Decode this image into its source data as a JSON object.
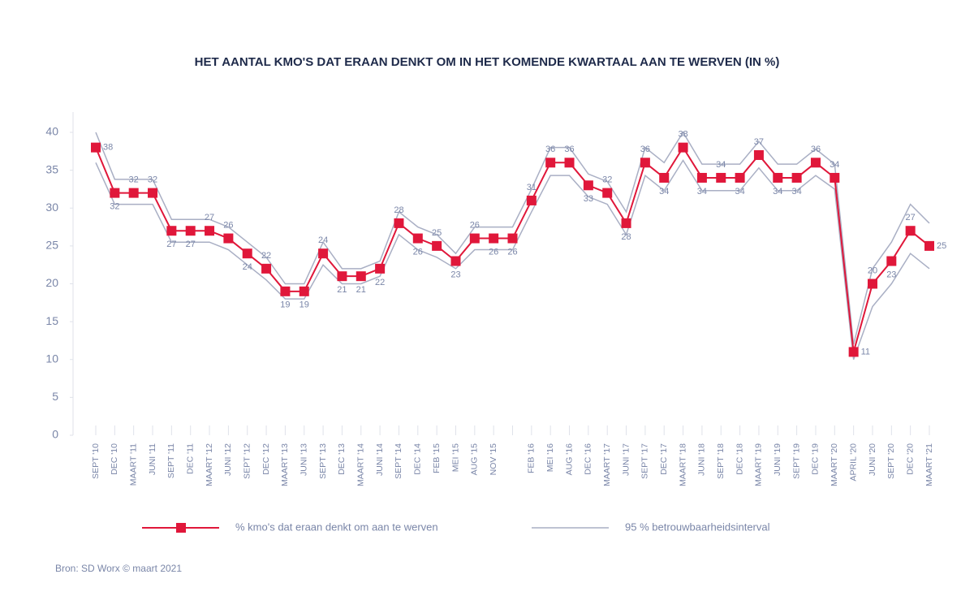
{
  "chart_data": {
    "type": "line",
    "title": "HET AANTAL KMO'S DAT ERAAN DENKT OM IN HET KOMENDE KWARTAAL AAN TE WERVEN (IN %)",
    "categories": [
      "SEPT '10",
      "DEC '10",
      "MAART '11",
      "JUNI '11",
      "SEPT '11",
      "DEC '11",
      "MAART '12",
      "JUNI '12",
      "SEPT '12",
      "DEC '12",
      "MAART '13",
      "JUNI '13",
      "SEPT '13",
      "DEC '13",
      "MAART '14",
      "JUNI '14",
      "SEPT '14",
      "DEC '14",
      "FEB '15",
      "MEI '15",
      "AUG '15",
      "NOV '15",
      null,
      "FEB '16",
      "MEI '16",
      "AUG '16",
      "DEC '16",
      "MAART '17",
      "JUNI '17",
      "SEPT '17",
      "DEC '17",
      "MAART '18",
      "JUNI '18",
      "SEPT '18",
      "DEC '18",
      "MAART '19",
      "JUNI '19",
      "SEPT '19",
      "DEC '19",
      "MAART '20",
      "APRIL '20",
      "JUNI '20",
      "SEPT '20",
      "DEC '20",
      "MAART '21"
    ],
    "series": [
      {
        "name": "% kmo's dat eraan denkt om aan te werven",
        "color": "#e0173a",
        "values": [
          38,
          32,
          32,
          32,
          27,
          27,
          27,
          26,
          24,
          22,
          19,
          19,
          24,
          21,
          21,
          22,
          28,
          26,
          25,
          23,
          26,
          26,
          26,
          31,
          36,
          36,
          33,
          32,
          28,
          36,
          34,
          38,
          34,
          34,
          34,
          37,
          34,
          34,
          36,
          34,
          11,
          20,
          23,
          27,
          25
        ]
      },
      {
        "name": "95 % betrouwbaarheidsinterval",
        "color": "#a9afc4",
        "upper": [
          40,
          33.8,
          33.8,
          33.8,
          28.5,
          28.5,
          28.5,
          27.5,
          25.5,
          23.5,
          20,
          20,
          25.5,
          22,
          22,
          23,
          29.5,
          27.5,
          26.5,
          24,
          27.5,
          27.5,
          27.5,
          32.5,
          38,
          38,
          34.5,
          33.5,
          29.5,
          38,
          36,
          40,
          35.8,
          35.8,
          35.8,
          38.8,
          35.8,
          35.8,
          37.8,
          35.8,
          12,
          22,
          25.5,
          30.5,
          28
        ],
        "lower": [
          36,
          30.5,
          30.5,
          30.5,
          25.5,
          25.5,
          25.5,
          24.5,
          22.5,
          20.5,
          18,
          18,
          22.5,
          20,
          20,
          21,
          26.5,
          24.5,
          23.5,
          22,
          24.5,
          24.5,
          24.5,
          29.5,
          34.3,
          34.3,
          31.5,
          30.5,
          26.5,
          34.3,
          32.3,
          36.3,
          32.3,
          32.3,
          32.3,
          35.3,
          32.3,
          32.3,
          34.3,
          32.5,
          10,
          17,
          20,
          24,
          22
        ]
      }
    ],
    "ylim": [
      0,
      40
    ],
    "yticks": [
      0,
      5,
      10,
      15,
      20,
      25,
      30,
      35,
      40
    ],
    "source": "Bron: SD Worx © maart 2021"
  }
}
